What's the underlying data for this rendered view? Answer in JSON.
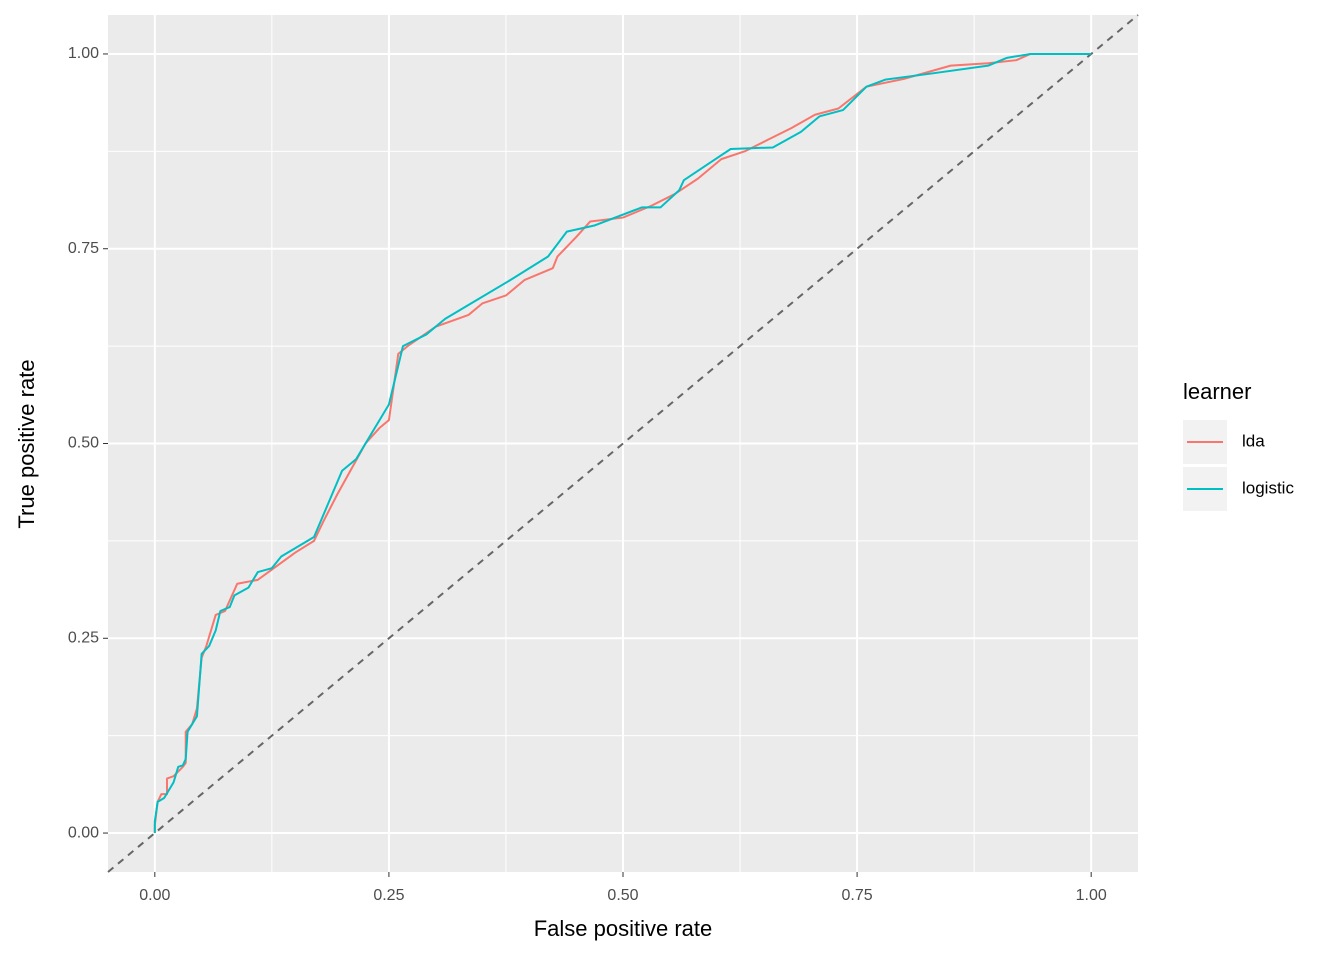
{
  "chart_data": {
    "type": "line",
    "x_label": "False positive rate",
    "y_label": "True positive rate",
    "legend_title": "learner",
    "legend_position": "right",
    "grid": true,
    "diagonal": true,
    "xlim": [
      -0.05,
      1.05
    ],
    "ylim": [
      -0.05,
      1.05
    ],
    "xticks": [
      {
        "value": 0,
        "label": "0.00"
      },
      {
        "value": 0.25,
        "label": "0.25"
      },
      {
        "value": 0.5,
        "label": "0.50"
      },
      {
        "value": 0.75,
        "label": "0.75"
      },
      {
        "value": 1,
        "label": "1.00"
      }
    ],
    "yticks": [
      {
        "value": 0,
        "label": "0.00"
      },
      {
        "value": 0.25,
        "label": "0.25"
      },
      {
        "value": 0.5,
        "label": "0.50"
      },
      {
        "value": 0.75,
        "label": "0.75"
      },
      {
        "value": 1,
        "label": "1.00"
      }
    ],
    "xminor": [
      0.125,
      0.375,
      0.625,
      0.875
    ],
    "yminor": [
      0.125,
      0.375,
      0.625,
      0.875
    ],
    "series": [
      {
        "name": "lda",
        "color": "#F8766D",
        "x": [
          0,
          0,
          0.003,
          0.007,
          0.013,
          0.013,
          0.02,
          0.03,
          0.033,
          0.033,
          0.04,
          0.045,
          0.05,
          0.055,
          0.06,
          0.065,
          0.075,
          0.088,
          0.11,
          0.15,
          0.17,
          0.18,
          0.195,
          0.225,
          0.24,
          0.25,
          0.26,
          0.27,
          0.3,
          0.335,
          0.35,
          0.375,
          0.395,
          0.425,
          0.43,
          0.45,
          0.465,
          0.5,
          0.53,
          0.555,
          0.58,
          0.605,
          0.63,
          0.655,
          0.68,
          0.705,
          0.73,
          0.76,
          0.8,
          0.85,
          0.89,
          0.92,
          0.935,
          1
        ],
        "values": [
          0,
          0.01,
          0.04,
          0.05,
          0.05,
          0.07,
          0.073,
          0.085,
          0.09,
          0.13,
          0.14,
          0.16,
          0.225,
          0.24,
          0.26,
          0.28,
          0.285,
          0.32,
          0.325,
          0.36,
          0.375,
          0.4,
          0.435,
          0.5,
          0.52,
          0.53,
          0.615,
          0.625,
          0.65,
          0.665,
          0.68,
          0.69,
          0.71,
          0.725,
          0.74,
          0.765,
          0.785,
          0.79,
          0.805,
          0.82,
          0.84,
          0.865,
          0.875,
          0.89,
          0.905,
          0.922,
          0.93,
          0.958,
          0.968,
          0.985,
          0.988,
          0.992,
          1,
          1
        ]
      },
      {
        "name": "logistic",
        "color": "#00BFC4",
        "x": [
          0,
          0,
          0.003,
          0.01,
          0.02,
          0.025,
          0.03,
          0.033,
          0.035,
          0.045,
          0.05,
          0.058,
          0.065,
          0.07,
          0.08,
          0.085,
          0.1,
          0.11,
          0.125,
          0.135,
          0.17,
          0.2,
          0.215,
          0.235,
          0.25,
          0.265,
          0.29,
          0.31,
          0.345,
          0.38,
          0.42,
          0.44,
          0.47,
          0.52,
          0.54,
          0.56,
          0.565,
          0.595,
          0.615,
          0.66,
          0.69,
          0.71,
          0.735,
          0.76,
          0.78,
          0.83,
          0.89,
          0.91,
          0.935,
          1
        ],
        "values": [
          0,
          0.015,
          0.04,
          0.045,
          0.065,
          0.085,
          0.087,
          0.095,
          0.13,
          0.15,
          0.23,
          0.24,
          0.26,
          0.285,
          0.29,
          0.305,
          0.315,
          0.335,
          0.34,
          0.355,
          0.38,
          0.465,
          0.48,
          0.52,
          0.55,
          0.625,
          0.64,
          0.66,
          0.685,
          0.71,
          0.74,
          0.772,
          0.78,
          0.803,
          0.803,
          0.825,
          0.838,
          0.862,
          0.878,
          0.88,
          0.9,
          0.92,
          0.928,
          0.958,
          0.967,
          0.975,
          0.985,
          0.995,
          1,
          1
        ]
      }
    ]
  }
}
